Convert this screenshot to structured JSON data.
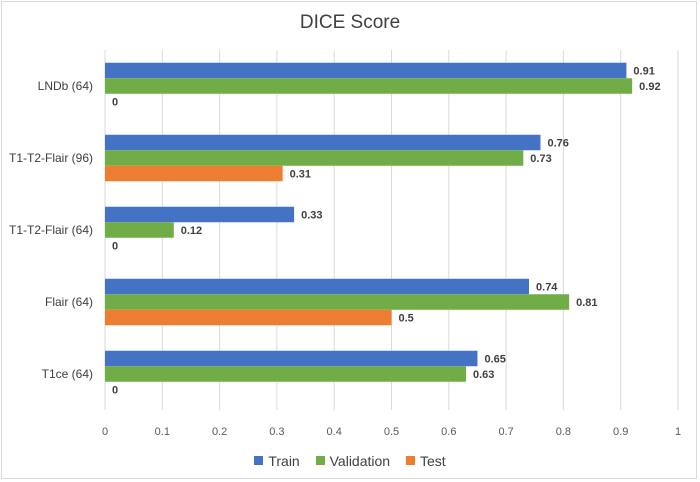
{
  "chart_data": {
    "type": "bar",
    "orientation": "horizontal",
    "title": "DICE Score",
    "xlabel": "",
    "ylabel": "",
    "xlim": [
      0,
      1
    ],
    "xticks": [
      "0",
      "0.1",
      "0.2",
      "0.3",
      "0.4",
      "0.5",
      "0.6",
      "0.7",
      "0.8",
      "0.9",
      "1"
    ],
    "grid": true,
    "legend_position": "bottom",
    "categories": [
      "LNDb (64)",
      "T1-T2-Flair (96)",
      "T1-T2-Flair (64)",
      "Flair (64)",
      "T1ce (64)"
    ],
    "series": [
      {
        "name": "Train",
        "color": "#4472c4",
        "values": [
          0.91,
          0.76,
          0.33,
          0.74,
          0.65
        ]
      },
      {
        "name": "Validation",
        "color": "#70ad47",
        "values": [
          0.92,
          0.73,
          0.12,
          0.81,
          0.63
        ]
      },
      {
        "name": "Test",
        "color": "#ed7d31",
        "values": [
          0,
          0.31,
          0,
          0.5,
          0
        ]
      }
    ]
  }
}
